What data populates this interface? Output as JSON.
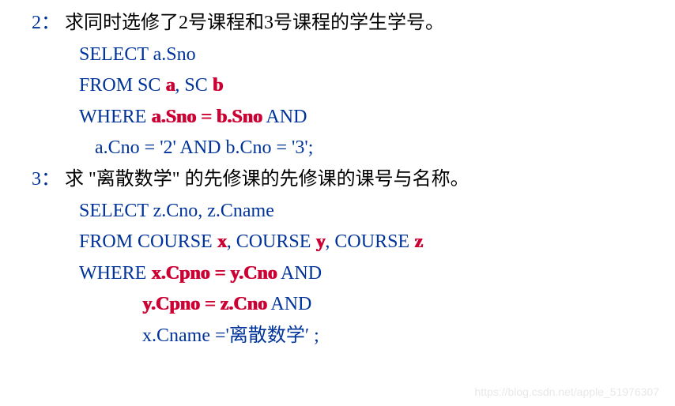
{
  "q1": {
    "number": "2：",
    "text": "求同时选修了2号课程和3号课程的学生学号。",
    "line1_a": "SELECT   a.Sno",
    "line2_a": "FROM   SC ",
    "line2_alias1": "a",
    "line2_b": ", SC ",
    "line2_alias2": "b",
    "line3_a": "WHERE   ",
    "line3_alias": "a.Sno = b.Sno",
    "line3_b": "  AND",
    "line4": "a.Cno = '2'  AND b.Cno = '3';"
  },
  "q2": {
    "number": "3：",
    "text": "求 \"离散数学\" 的先修课的先修课的课号与名称。",
    "line1": "SELECT   z.Cno, z.Cname",
    "line2_a": "FROM   COURSE  ",
    "line2_x": "x",
    "line2_b": ", COURSE ",
    "line2_y": "y",
    "line2_c": ", COURSE ",
    "line2_z": "z",
    "line3_a": "WHERE   ",
    "line3_alias": "x.Cpno = y.Cno",
    "line3_b": "  AND",
    "line4_alias": "y.Cpno = z.Cno",
    "line4_b": "  AND",
    "line5": "x.Cname ='离散数学′  ;"
  },
  "watermark": "https://blog.csdn.net/apple_51976307",
  "colors": {
    "keyword": "#003399",
    "alias": "#cc0033",
    "text": "#000000",
    "watermark": "#e8e8e8",
    "background": "#ffffff"
  },
  "fontsize": 24
}
